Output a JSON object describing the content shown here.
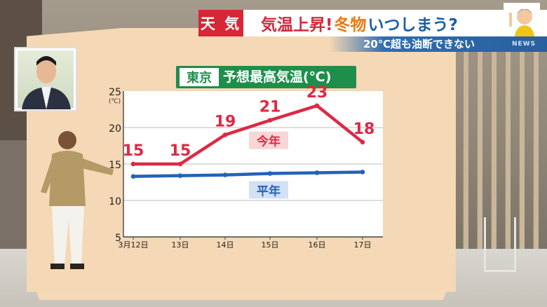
{
  "banner": {
    "tag": "天 気",
    "headline_a": "気温上昇!",
    "headline_b": "冬物",
    "headline_c": "いつしまう?",
    "subtitle": "20℃超も油断できない",
    "logo": "NEWS"
  },
  "colors": {
    "this_year": "#dc2a44",
    "normal": "#2462b8",
    "title_green": "#1f8e4b",
    "board": "#f5d8b5",
    "banner_red": "#d82636"
  },
  "chart_data": {
    "type": "line",
    "title_city": "東京",
    "title_rest": "予想最高気温(℃)",
    "y_unit": "(℃)",
    "categories": [
      "3月12日",
      "13日",
      "14日",
      "15日",
      "16日",
      "17日"
    ],
    "yticks": [
      "25",
      "20",
      "15",
      "10",
      "5"
    ],
    "ylim": [
      5,
      25
    ],
    "grid": true,
    "series": [
      {
        "name": "今年",
        "values": [
          15,
          15,
          19,
          21,
          23,
          18
        ],
        "value_labels": [
          "15",
          "15",
          "19",
          "21",
          "23",
          "18"
        ]
      },
      {
        "name": "平年",
        "values": [
          13.3,
          13.4,
          13.5,
          13.7,
          13.8,
          13.9
        ]
      }
    ]
  }
}
